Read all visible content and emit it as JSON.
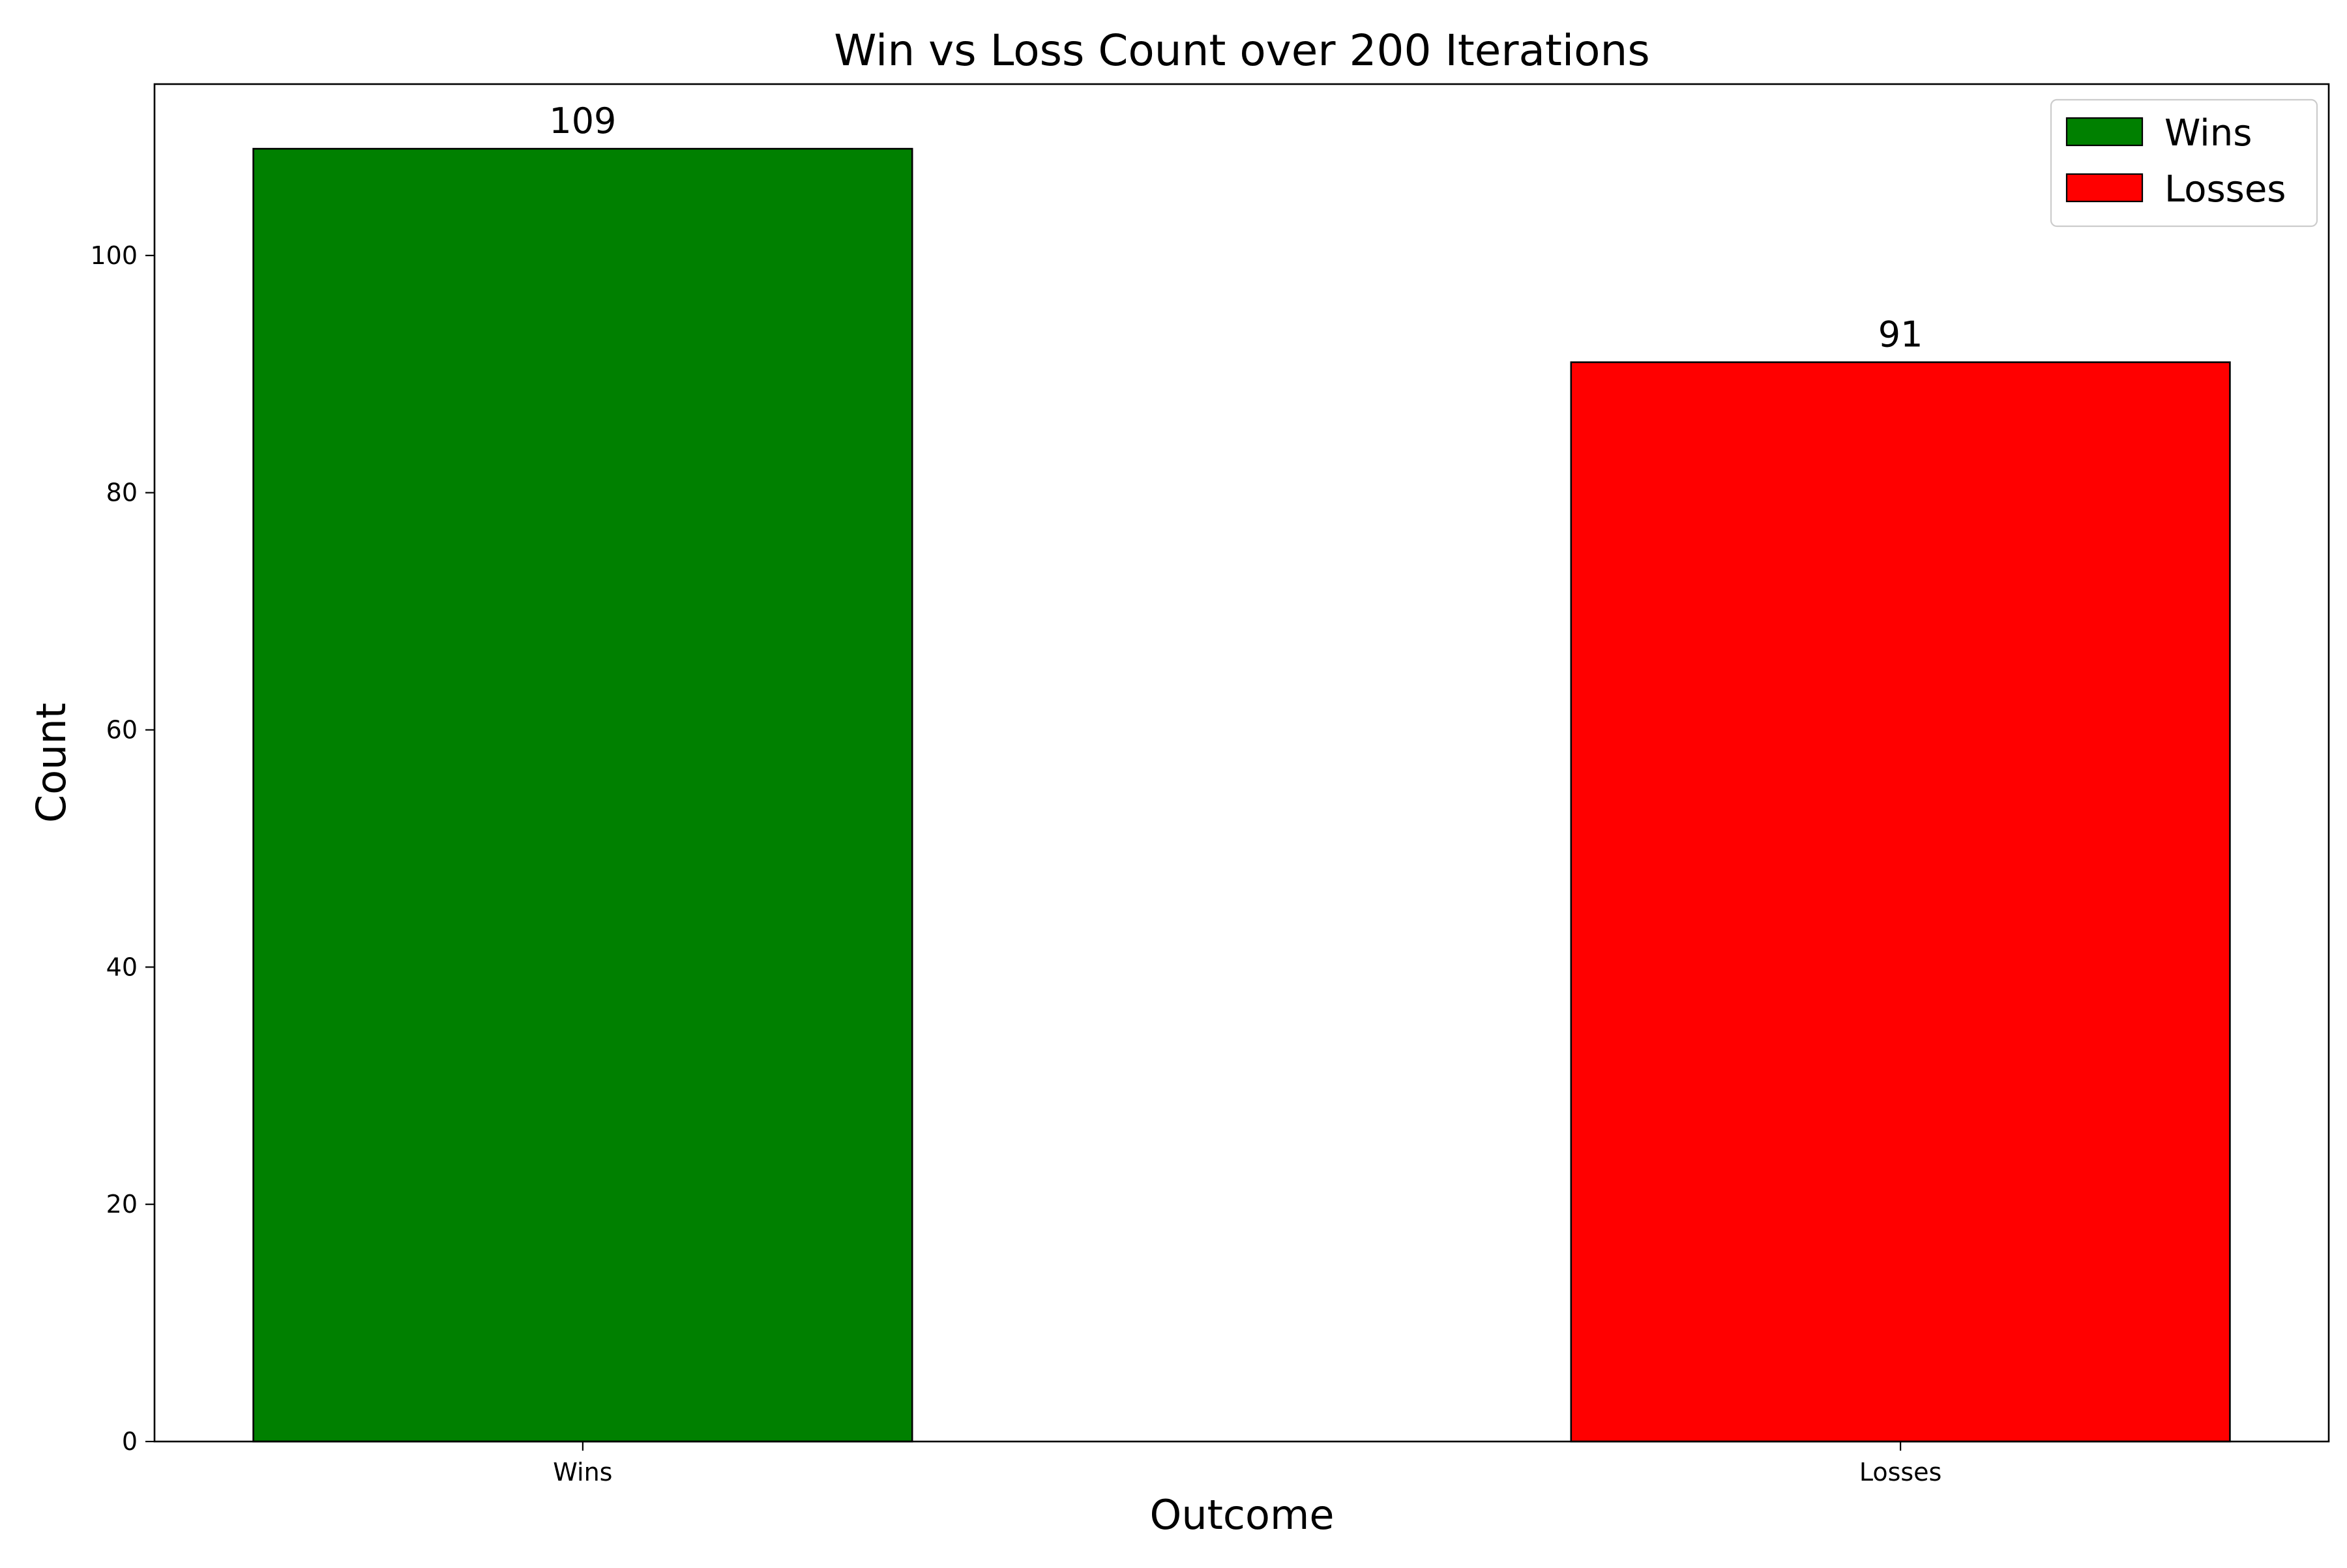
{
  "chart_data": {
    "type": "bar",
    "title": "Win vs Loss Count over 200 Iterations",
    "xlabel": "Outcome",
    "ylabel": "Count",
    "categories": [
      "Wins",
      "Losses"
    ],
    "values": [
      109,
      91
    ],
    "data_labels": [
      "109",
      "91"
    ],
    "colors": [
      "#008000",
      "#ff0000"
    ],
    "edge_color": "#000000",
    "ylim": [
      0,
      114.45
    ],
    "y_ticks": [
      0,
      20,
      40,
      60,
      80,
      100
    ],
    "y_tick_labels": [
      "0",
      "20",
      "40",
      "60",
      "80",
      "100"
    ],
    "grid": false,
    "legend": {
      "placement": "top-right",
      "entries": [
        {
          "label": "Wins",
          "color": "#008000"
        },
        {
          "label": "Losses",
          "color": "#ff0000"
        }
      ]
    }
  }
}
